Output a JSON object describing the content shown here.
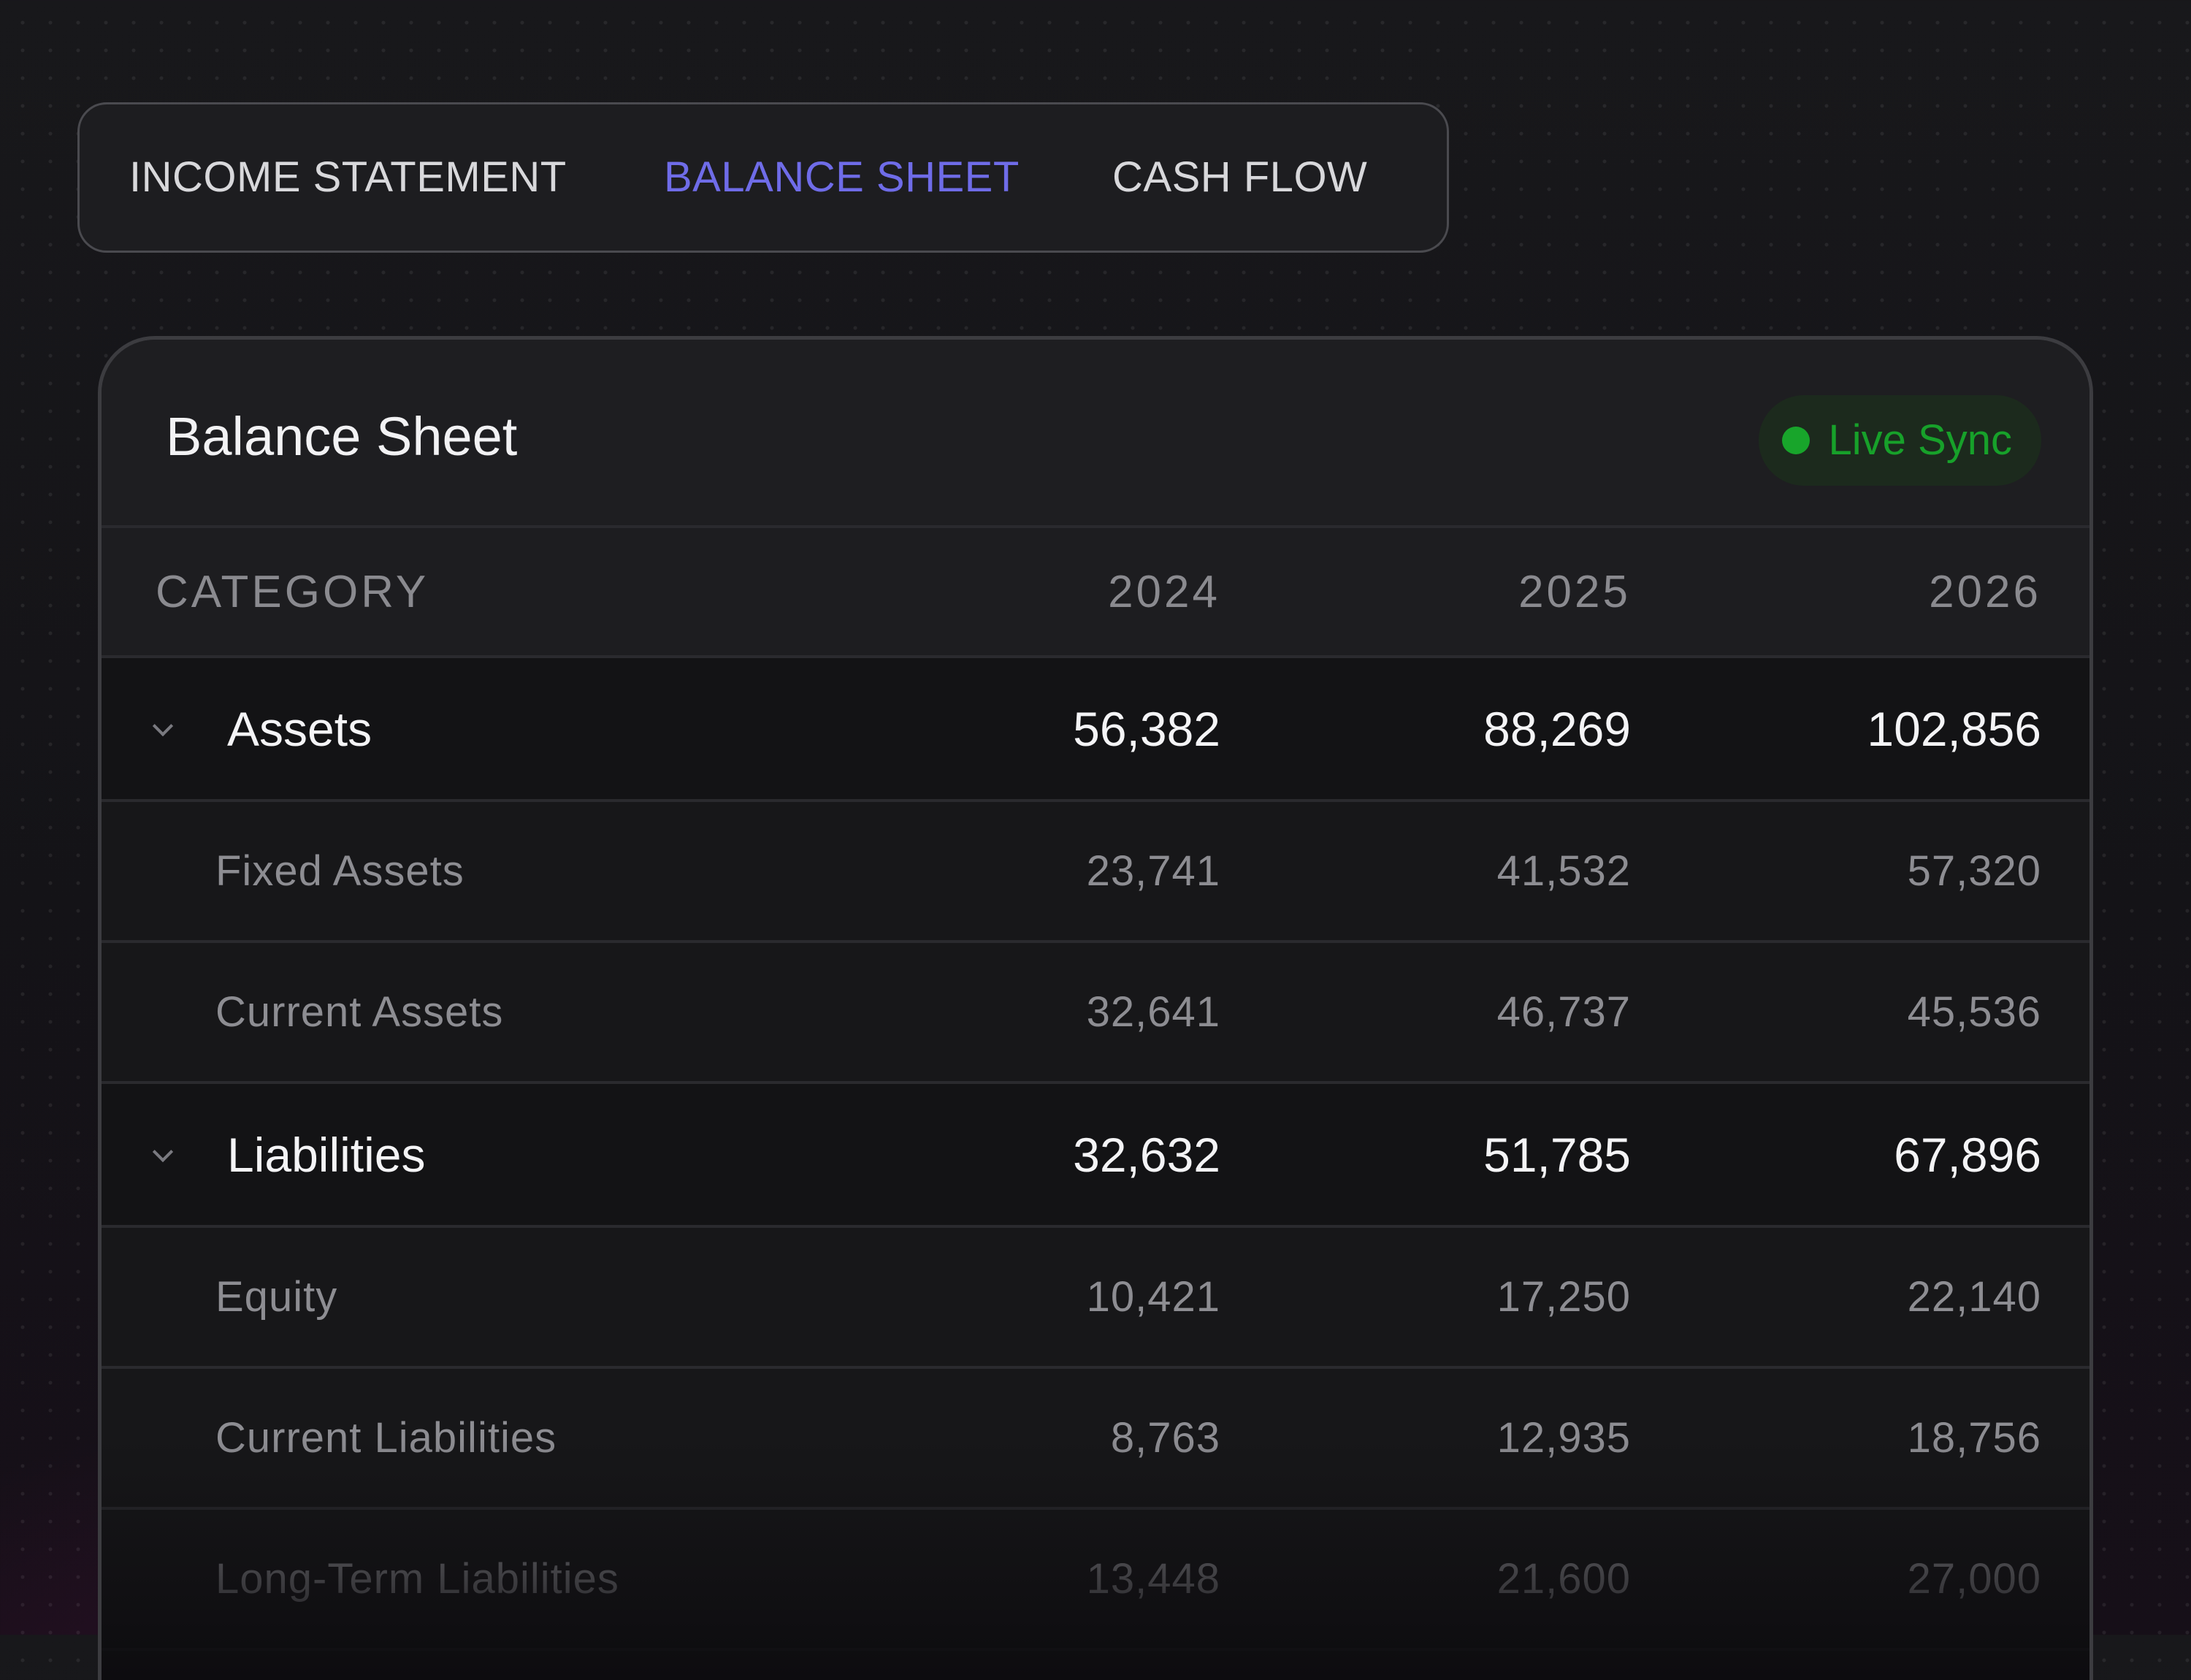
{
  "tabs": [
    {
      "label": "INCOME STATEMENT",
      "active": false
    },
    {
      "label": "BALANCE SHEET",
      "active": true
    },
    {
      "label": "CASH FLOW",
      "active": false
    }
  ],
  "colors": {
    "active_tab": "#6f6ce8",
    "live_sync": "#17a12a"
  },
  "card": {
    "title": "Balance Sheet",
    "status_label": "Live Sync"
  },
  "table": {
    "headers": [
      "CATEGORY",
      "2024",
      "2025",
      "2026"
    ],
    "rows": [
      {
        "type": "group",
        "label": "Assets",
        "values": [
          "56,382",
          "88,269",
          "102,856"
        ],
        "icon": "chevron-down-icon"
      },
      {
        "type": "sub",
        "label": "Fixed Assets",
        "values": [
          "23,741",
          "41,532",
          "57,320"
        ]
      },
      {
        "type": "sub",
        "label": "Current Assets",
        "values": [
          "32,641",
          "46,737",
          "45,536"
        ]
      },
      {
        "type": "group",
        "label": "Liabilities",
        "values": [
          "32,632",
          "51,785",
          "67,896"
        ],
        "icon": "chevron-down-icon"
      },
      {
        "type": "sub",
        "label": "Equity",
        "values": [
          "10,421",
          "17,250",
          "22,140"
        ]
      },
      {
        "type": "sub",
        "label": "Current Liabilities",
        "values": [
          "8,763",
          "12,935",
          "18,756"
        ]
      },
      {
        "type": "sub",
        "label": "Long-Term Liabilities",
        "values": [
          "13,448",
          "21,600",
          "27,000"
        ]
      }
    ]
  }
}
